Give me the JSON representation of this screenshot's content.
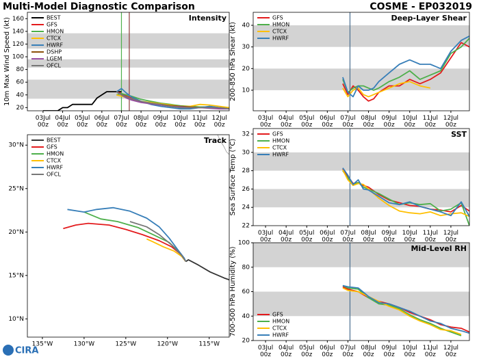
{
  "title": "Multi-Model Diagnostic Comparison",
  "storm": "COSME - EP032019",
  "logo": "CIRA",
  "chart_data": [
    {
      "type": "line",
      "title": "Intensity",
      "ylabel": "10m Max Wind Speed (kt)",
      "legend": "upper left",
      "xlim": [
        2.2,
        12.5
      ],
      "ylim": [
        15,
        170
      ],
      "xticks": [
        {
          "value": 3,
          "label": "03Jul 00z"
        },
        {
          "value": 4,
          "label": "04Jul 00z"
        },
        {
          "value": 5,
          "label": "05Jul 00z"
        },
        {
          "value": 6,
          "label": "06Jul 00z"
        },
        {
          "value": 7,
          "label": "07Jul 00z"
        },
        {
          "value": 8,
          "label": "08Jul 00z"
        },
        {
          "value": 9,
          "label": "09Jul 00z"
        },
        {
          "value": 10,
          "label": "10Jul 00z"
        },
        {
          "value": 11,
          "label": "11Jul 00z"
        },
        {
          "value": 12,
          "label": "12Jul 00z"
        }
      ],
      "yticks": [
        20,
        40,
        60,
        80,
        100,
        120,
        140,
        160
      ],
      "bands": [
        [
          34,
          64
        ],
        [
          83,
          96
        ],
        [
          113,
          137
        ]
      ],
      "vlines": [
        {
          "x": 7.0,
          "color": "#4daf4a"
        },
        {
          "x": 7.4,
          "color": "#8c3a3a"
        }
      ],
      "series": [
        {
          "name": "BEST",
          "color": "#000000",
          "x": [
            3,
            3.25,
            3.5,
            3.75,
            4,
            4.25,
            4.5,
            4.75,
            5,
            5.25,
            5.5,
            5.75,
            6,
            6.25,
            6.5,
            6.75,
            7
          ],
          "values": [
            15,
            15,
            15,
            15,
            20,
            20,
            25,
            25,
            25,
            25,
            25,
            35,
            40,
            45,
            45,
            45,
            45
          ]
        },
        {
          "name": "GFS",
          "color": "#e31a1c",
          "x": [
            6.75,
            7,
            7.25,
            7.5,
            8,
            8.5,
            9,
            9.5,
            10,
            10.5,
            11,
            11.5,
            12,
            12.5
          ],
          "values": [
            45,
            42,
            38,
            35,
            30,
            27,
            24,
            22,
            20,
            20,
            20,
            20,
            19,
            18
          ]
        },
        {
          "name": "HMON",
          "color": "#4daf4a",
          "x": [
            6.75,
            7,
            7.25,
            7.5,
            8,
            8.5,
            9,
            9.5,
            10,
            10.5,
            11,
            11.5,
            12,
            12.5
          ],
          "values": [
            40,
            42,
            40,
            38,
            33,
            30,
            27,
            25,
            23,
            22,
            21,
            21,
            20,
            19
          ]
        },
        {
          "name": "CTCX",
          "color": "#ffbf00",
          "x": [
            6.75,
            7,
            7.25,
            7.5,
            8,
            8.5,
            9,
            9.5,
            10,
            10.5,
            11,
            11.5,
            12,
            12.5
          ],
          "values": [
            40,
            38,
            36,
            34,
            30,
            28,
            26,
            24,
            22,
            22,
            25,
            24,
            22,
            20
          ]
        },
        {
          "name": "HWRF",
          "color": "#377eb8",
          "x": [
            6.75,
            7,
            7.25,
            7.5,
            8,
            8.5,
            9,
            9.5,
            10,
            10.5,
            11,
            11.5,
            12,
            12.5
          ],
          "values": [
            45,
            50,
            43,
            37,
            30,
            25,
            22,
            20,
            18,
            18,
            20,
            22,
            20,
            18
          ]
        },
        {
          "name": "DSHP",
          "color": "#8c510a",
          "x": [
            6.75,
            7,
            7.25,
            7.5,
            8,
            8.5,
            9,
            9.5,
            10,
            10.5,
            11,
            11.5,
            12,
            12.5
          ],
          "values": [
            45,
            40,
            36,
            33,
            29,
            27,
            25,
            23,
            22,
            21,
            20,
            20,
            19,
            18
          ]
        },
        {
          "name": "LGEM",
          "color": "#984ea3",
          "x": [
            6.75,
            7,
            7.25,
            7.5,
            8,
            8.5,
            9,
            9.5,
            10,
            10.5,
            11,
            11.5,
            12,
            12.5
          ],
          "values": [
            45,
            40,
            35,
            32,
            28,
            26,
            24,
            22,
            21,
            20,
            20,
            19,
            18,
            18
          ]
        },
        {
          "name": "OFCL",
          "color": "#777777",
          "x": [
            6.75,
            7,
            7.25,
            7.5,
            8,
            8.5,
            9,
            9.5,
            10,
            10.5,
            11,
            11.5,
            12,
            12.5
          ],
          "values": [
            45,
            40,
            37,
            34,
            30,
            27,
            25,
            22,
            20,
            20,
            20,
            20,
            20,
            18
          ]
        }
      ]
    },
    {
      "type": "line",
      "title": "Track",
      "legend": "upper left",
      "xlim": [
        -136.8,
        -112.6
      ],
      "ylim": [
        7.9,
        31.2
      ],
      "xticks": [
        {
          "value": -135,
          "label": "135°W"
        },
        {
          "value": -130,
          "label": "130°W"
        },
        {
          "value": -125,
          "label": "125°W"
        },
        {
          "value": -120,
          "label": "120°W"
        },
        {
          "value": -115,
          "label": "115°W"
        }
      ],
      "yticks": [
        {
          "value": 10,
          "label": "10°N"
        },
        {
          "value": 15,
          "label": "15°N"
        },
        {
          "value": 20,
          "label": "20°N"
        },
        {
          "value": 25,
          "label": "25°N"
        },
        {
          "value": 30,
          "label": "30°N"
        }
      ],
      "series": [
        {
          "name": "BEST",
          "color": "#333333",
          "x": [
            -112.6,
            -113.2,
            -114.9,
            -116.3,
            -117.5,
            -117.8
          ],
          "values": [
            14.5,
            14.7,
            15.4,
            16.2,
            16.8,
            16.6
          ]
        },
        {
          "name": "GFS",
          "color": "#e31a1c",
          "x": [
            -117.8,
            -118.5,
            -119.5,
            -121,
            -123,
            -125,
            -127,
            -129.5,
            -131,
            -132.5
          ],
          "values": [
            16.6,
            17.5,
            18.3,
            19,
            19.7,
            20.3,
            20.8,
            21,
            20.8,
            20.4
          ]
        },
        {
          "name": "HMON",
          "color": "#4daf4a",
          "x": [
            -117.8,
            -118.5,
            -119.8,
            -121.5,
            -123.5,
            -126,
            -128,
            -130
          ],
          "values": [
            16.6,
            17.6,
            18.8,
            19.6,
            20.5,
            21.2,
            21.5,
            22.3
          ]
        },
        {
          "name": "CTCX",
          "color": "#ffbf00",
          "x": [
            -117.8,
            -118.3,
            -119.2,
            -120.5,
            -121.8,
            -122.5
          ],
          "values": [
            16.6,
            17.2,
            17.8,
            18.3,
            18.9,
            19.2
          ]
        },
        {
          "name": "HWRF",
          "color": "#377eb8",
          "x": [
            -117.8,
            -118,
            -118.8,
            -119.8,
            -121,
            -122.5,
            -124.5,
            -126.5,
            -128.5,
            -130,
            -132
          ],
          "values": [
            16.6,
            17,
            18,
            19.3,
            20.6,
            21.6,
            22.4,
            22.8,
            22.6,
            22.3,
            22.6
          ]
        },
        {
          "name": "OFCL",
          "color": "#777777",
          "x": [
            -117.8,
            -118.3,
            -119.5,
            -121,
            -122.5,
            -124.5
          ],
          "values": [
            16.6,
            17.3,
            18.5,
            19.7,
            20.6,
            21.2
          ]
        }
      ]
    },
    {
      "type": "line",
      "title": "Deep-Layer Shear",
      "ylabel": "200-850 hPa Shear (kt)",
      "legend": "upper left",
      "xlim": [
        2.4,
        12.9
      ],
      "ylim": [
        0.5,
        46
      ],
      "xticks": [
        {
          "value": 3,
          "label": "03Jul 00z"
        },
        {
          "value": 4,
          "label": "04Jul 00z"
        },
        {
          "value": 5,
          "label": "05Jul 00z"
        },
        {
          "value": 6,
          "label": "06Jul 00z"
        },
        {
          "value": 7,
          "label": "07Jul 00z"
        },
        {
          "value": 8,
          "label": "08Jul 00z"
        },
        {
          "value": 9,
          "label": "09Jul 00z"
        },
        {
          "value": 10,
          "label": "10Jul 00z"
        },
        {
          "value": 11,
          "label": "11Jul 00z"
        },
        {
          "value": 12,
          "label": "12Jul 00z"
        }
      ],
      "yticks": [
        10,
        20,
        30,
        40
      ],
      "bands": [
        [
          10,
          20
        ],
        [
          30,
          40
        ]
      ],
      "vlines": [
        {
          "x": 7.1,
          "color": "#4a6f8f"
        }
      ],
      "x": [
        6.75,
        7,
        7.25,
        7.5,
        7.75,
        8,
        8.25,
        8.5,
        9,
        9.5,
        10,
        10.5,
        11,
        11.5,
        12,
        12.5,
        12.9
      ],
      "series": [
        {
          "name": "GFS",
          "color": "#e31a1c",
          "values": [
            13,
            8,
            12,
            10,
            7,
            5,
            6,
            9,
            12,
            12,
            15,
            13,
            15,
            18,
            25,
            32,
            30
          ]
        },
        {
          "name": "HMON",
          "color": "#4daf4a",
          "values": [
            15,
            9,
            11,
            12,
            12,
            11,
            10,
            11,
            14,
            16,
            19,
            15,
            17,
            19,
            27,
            30,
            34
          ]
        },
        {
          "name": "CTCX",
          "color": "#ffbf00",
          "values": [
            11,
            7,
            10,
            11,
            8,
            7,
            8,
            9,
            11,
            13,
            14,
            12,
            11,
            null,
            null,
            null,
            null
          ]
        },
        {
          "name": "HWRF",
          "color": "#377eb8",
          "values": [
            16,
            9,
            7,
            12,
            10,
            10,
            11,
            14,
            18,
            22,
            24,
            22,
            22,
            20,
            28,
            33,
            35
          ]
        }
      ]
    },
    {
      "type": "line",
      "title": "SST",
      "ylabel": "Sea Surface Temp (°C)",
      "legend": "upper left",
      "xlim": [
        2.4,
        12.9
      ],
      "ylim": [
        22,
        32.6
      ],
      "xticks": [
        {
          "value": 3,
          "label": "03Jul 00z"
        },
        {
          "value": 4,
          "label": "04Jul 00z"
        },
        {
          "value": 5,
          "label": "05Jul 00z"
        },
        {
          "value": 6,
          "label": "06Jul 00z"
        },
        {
          "value": 7,
          "label": "07Jul 00z"
        },
        {
          "value": 8,
          "label": "08Jul 00z"
        },
        {
          "value": 9,
          "label": "09Jul 00z"
        },
        {
          "value": 10,
          "label": "10Jul 00z"
        },
        {
          "value": 11,
          "label": "11Jul 00z"
        },
        {
          "value": 12,
          "label": "12Jul 00z"
        }
      ],
      "yticks": [
        22,
        24,
        26,
        28,
        30,
        32
      ],
      "bands": [
        [
          24,
          26
        ],
        [
          28,
          30
        ]
      ],
      "vlines": [
        {
          "x": 7.1,
          "color": "#4a6f8f"
        }
      ],
      "x": [
        6.75,
        7,
        7.25,
        7.5,
        7.75,
        8,
        8.5,
        9,
        9.5,
        10,
        10.5,
        11,
        11.5,
        12,
        12.5,
        12.9
      ],
      "series": [
        {
          "name": "GFS",
          "color": "#e31a1c",
          "values": [
            28.2,
            27.4,
            26.6,
            26.7,
            26.4,
            26.2,
            25.4,
            24.8,
            24.5,
            24.2,
            24.1,
            23.8,
            23.7,
            23.5,
            24.2,
            23.6
          ]
        },
        {
          "name": "HMON",
          "color": "#4daf4a",
          "values": [
            28.0,
            27.2,
            26.5,
            26.7,
            26.2,
            26.0,
            25.5,
            24.9,
            24.3,
            24.5,
            24.3,
            24.4,
            23.6,
            23.8,
            24.5,
            22.0
          ]
        },
        {
          "name": "CTCX",
          "color": "#ffbf00",
          "values": [
            28.1,
            27.0,
            26.4,
            26.6,
            26.5,
            26.0,
            25.0,
            24.2,
            23.6,
            23.4,
            23.3,
            23.5,
            23.1,
            23.3,
            23.4,
            23.0
          ]
        },
        {
          "name": "HWRF",
          "color": "#377eb8",
          "values": [
            28.3,
            27.5,
            26.5,
            27.0,
            26.0,
            25.9,
            25.2,
            24.5,
            24.3,
            24.6,
            24.1,
            23.8,
            23.5,
            23.1,
            24.6,
            23.0
          ]
        }
      ]
    },
    {
      "type": "line",
      "title": "Mid-Level RH",
      "ylabel": "700-500 hPa Humidity (%)",
      "legend": "lower left",
      "xlim": [
        2.4,
        12.9
      ],
      "ylim": [
        20,
        100
      ],
      "xticks": [
        {
          "value": 3,
          "label": "03Jul 00z"
        },
        {
          "value": 4,
          "label": "04Jul 00z"
        },
        {
          "value": 5,
          "label": "05Jul 00z"
        },
        {
          "value": 6,
          "label": "06Jul 00z"
        },
        {
          "value": 7,
          "label": "07Jul 00z"
        },
        {
          "value": 8,
          "label": "08Jul 00z"
        },
        {
          "value": 9,
          "label": "09Jul 00z"
        },
        {
          "value": 10,
          "label": "10Jul 00z"
        },
        {
          "value": 11,
          "label": "11Jul 00z"
        },
        {
          "value": 12,
          "label": "12Jul 00z"
        }
      ],
      "yticks": [
        20,
        40,
        60,
        80,
        100
      ],
      "bands": [
        [
          40,
          60
        ],
        [
          80,
          100
        ]
      ],
      "vlines": [
        {
          "x": 7.1,
          "color": "#4a6f8f"
        }
      ],
      "x": [
        6.75,
        7,
        7.5,
        8,
        8.5,
        9,
        9.5,
        10,
        10.5,
        11,
        11.5,
        12,
        12.5,
        12.9
      ],
      "series": [
        {
          "name": "GFS",
          "color": "#e31a1c",
          "values": [
            64,
            62,
            60,
            55,
            52,
            50,
            47,
            43,
            40,
            37,
            33,
            31,
            30,
            27
          ]
        },
        {
          "name": "HMON",
          "color": "#4daf4a",
          "values": [
            65,
            63,
            62,
            55,
            50,
            49,
            46,
            41,
            37,
            34,
            30,
            27,
            24,
            null
          ]
        },
        {
          "name": "CTCX",
          "color": "#ffbf00",
          "values": [
            63,
            61,
            60,
            56,
            52,
            48,
            45,
            40,
            36,
            33,
            29,
            28,
            25,
            null
          ]
        },
        {
          "name": "HWRF",
          "color": "#377eb8",
          "values": [
            65,
            64,
            63,
            56,
            51,
            50,
            47,
            44,
            40,
            36,
            34,
            30,
            28,
            26
          ]
        }
      ]
    }
  ]
}
